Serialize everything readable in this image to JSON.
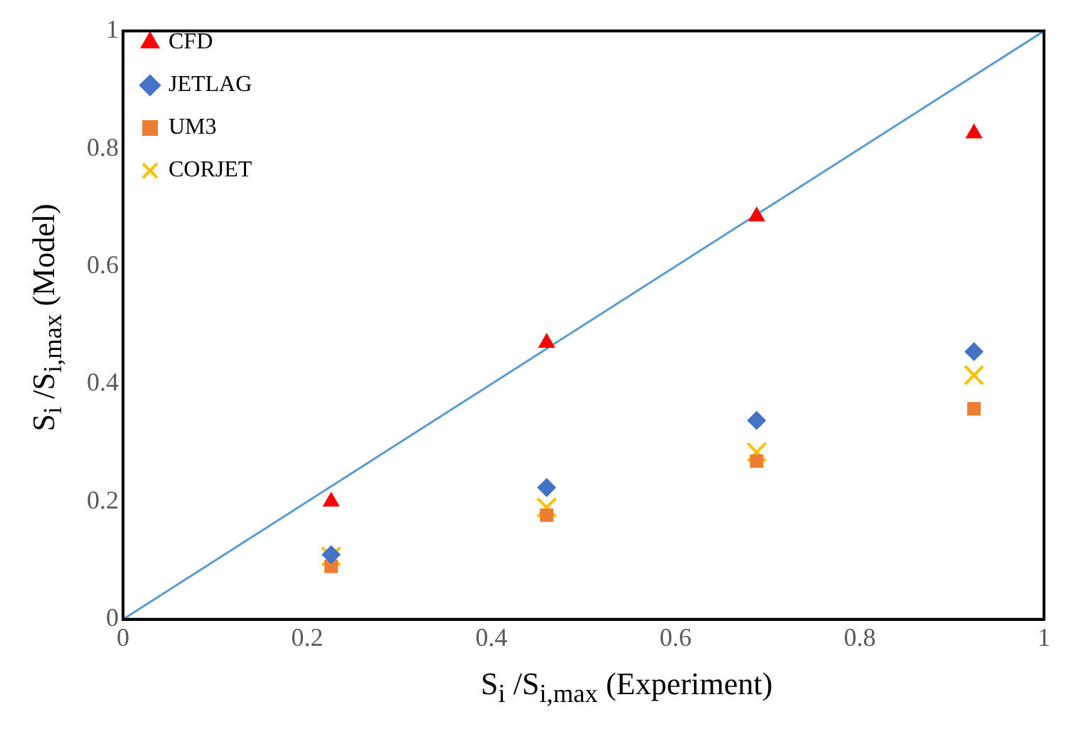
{
  "chart_data": {
    "type": "scatter",
    "xlabel": "S$_{i}$ /S$_{i,max}$  (Experiment)",
    "ylabel": "S$_{i}$ /S$_{i,max}$ (Model)",
    "xlim": [
      0,
      1
    ],
    "xticks": [
      0,
      0.2,
      0.4,
      0.6,
      0.8,
      1
    ],
    "ylim": [
      0,
      1
    ],
    "yticks": [
      0,
      0.2,
      0.4,
      0.6,
      0.8,
      1
    ],
    "grid": false,
    "legend": "top left",
    "series": [
      {
        "name": "CFD",
        "color": "#ff0000",
        "marker": "triangle",
        "x": [
          0.226,
          0.46,
          0.688,
          0.924
        ],
        "values": [
          0.2,
          0.47,
          0.685,
          0.826
        ]
      },
      {
        "name": "JETLAG",
        "color": "#4472c4",
        "marker": "diamond",
        "x": [
          0.226,
          0.46,
          0.688,
          0.924
        ],
        "values": [
          0.11,
          0.224,
          0.338,
          0.455
        ]
      },
      {
        "name": "UM3",
        "color": "#ed7d31",
        "marker": "square",
        "x": [
          0.226,
          0.46,
          0.688,
          0.924
        ],
        "values": [
          0.09,
          0.177,
          0.269,
          0.358
        ]
      },
      {
        "name": "CORJET",
        "color": "#ffc000",
        "marker": "cross",
        "x": [
          0.226,
          0.46,
          0.688,
          0.924
        ],
        "values": [
          0.107,
          0.19,
          0.284,
          0.415
        ]
      },
      {
        "type": "line",
        "color": "#5b9bd5",
        "x": [
          0,
          1
        ],
        "values": [
          0,
          1
        ]
      }
    ]
  }
}
